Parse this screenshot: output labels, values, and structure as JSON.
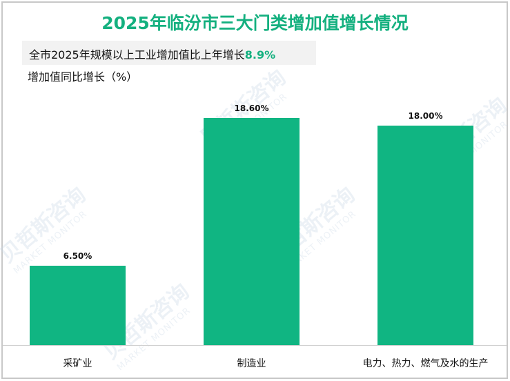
{
  "title": "2025年临汾市三大门类增加值增长情况",
  "highlight": {
    "text": "全市2025年规模以上工业增加值比上年增长",
    "value": "8.9%"
  },
  "unit_label": "增加值同比增长（%）",
  "watermark": {
    "cn": "贝哲斯咨询",
    "en": "MARKET MONITOR"
  },
  "colors": {
    "bar": "#10b582",
    "title": "#14b07f",
    "highlight_bg": "#f2f2f2"
  },
  "chart_data": {
    "type": "bar",
    "title": "2025年临汾市三大门类增加值增长情况",
    "subtitle": "全市2025年规模以上工业增加值比上年增长8.9%",
    "xlabel": "",
    "ylabel": "增加值同比增长（%）",
    "categories": [
      "采矿业",
      "制造业",
      "电力、热力、燃气及水的生产"
    ],
    "values": [
      6.5,
      18.6,
      18.0
    ],
    "data_labels": [
      "6.50%",
      "18.60%",
      "18.00%"
    ],
    "ylim": [
      0,
      20
    ],
    "grid": false,
    "legend": null
  }
}
